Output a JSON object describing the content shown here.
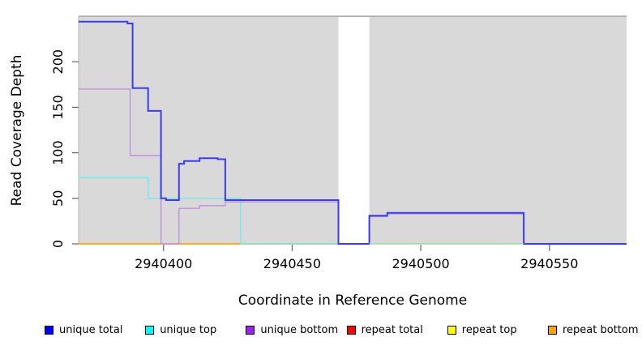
{
  "chart_data": {
    "type": "line",
    "step": true,
    "title": "",
    "xlabel": "Coordinate in Reference Genome",
    "ylabel": "Read Coverage Depth",
    "x_range": [
      2940367,
      2940580
    ],
    "y_range": [
      0,
      250
    ],
    "x_ticks": [
      2940400,
      2940450,
      2940500,
      2940550
    ],
    "y_ticks": [
      0,
      50,
      100,
      150,
      200
    ],
    "grid": false,
    "legend_position": "bottom",
    "panel_bg": "#d9d9d9",
    "panel_border_color": "#999999",
    "tick_color": "#666666",
    "gap_band": {
      "x_start": 2940468,
      "x_end": 2940480,
      "color": "#ffffff"
    },
    "series": [
      {
        "name": "unique total",
        "legend_color": "#0000ff",
        "line_color": "#3a3aff",
        "line_width": 2,
        "points": [
          [
            2940367,
            244
          ],
          [
            2940386,
            244
          ],
          [
            2940386,
            242
          ],
          [
            2940388,
            242
          ],
          [
            2940388,
            171
          ],
          [
            2940394,
            171
          ],
          [
            2940394,
            146
          ],
          [
            2940399,
            146
          ],
          [
            2940399,
            50
          ],
          [
            2940401,
            50
          ],
          [
            2940401,
            48
          ],
          [
            2940406,
            48
          ],
          [
            2940406,
            88
          ],
          [
            2940408,
            88
          ],
          [
            2940408,
            91
          ],
          [
            2940414,
            91
          ],
          [
            2940414,
            94
          ],
          [
            2940421,
            94
          ],
          [
            2940421,
            93
          ],
          [
            2940424,
            93
          ],
          [
            2940424,
            48
          ],
          [
            2940468,
            48
          ],
          [
            2940468,
            0
          ],
          [
            2940480,
            0
          ],
          [
            2940480,
            31
          ],
          [
            2940487,
            31
          ],
          [
            2940487,
            34
          ],
          [
            2940540,
            34
          ],
          [
            2940540,
            0
          ],
          [
            2940580,
            0
          ]
        ]
      },
      {
        "name": "unique top",
        "legend_color": "#00ffff",
        "line_color": "#6fecec",
        "line_width": 1.4,
        "points": [
          [
            2940367,
            73
          ],
          [
            2940394,
            73
          ],
          [
            2940394,
            50
          ],
          [
            2940430,
            50
          ],
          [
            2940430,
            0
          ],
          [
            2940468,
            0
          ]
        ]
      },
      {
        "name": "unique bottom",
        "legend_color": "#a020f0",
        "line_color": "#bd92dd",
        "line_width": 1.4,
        "points": [
          [
            2940367,
            170
          ],
          [
            2940387,
            170
          ],
          [
            2940387,
            97
          ],
          [
            2940399,
            97
          ],
          [
            2940399,
            0
          ],
          [
            2940406,
            0
          ],
          [
            2940406,
            39
          ],
          [
            2940414,
            39
          ],
          [
            2940414,
            42
          ],
          [
            2940424,
            42
          ],
          [
            2940424,
            46
          ],
          [
            2940468,
            46
          ],
          [
            2940468,
            0
          ],
          [
            2940480,
            0
          ],
          [
            2940480,
            30
          ],
          [
            2940487,
            30
          ],
          [
            2940487,
            33
          ],
          [
            2940540,
            33
          ],
          [
            2940540,
            0
          ],
          [
            2940580,
            0
          ]
        ]
      },
      {
        "name": "repeat total",
        "legend_color": "#ff0000",
        "line_color": "#ff0000",
        "line_width": 1.2,
        "points": [
          [
            2940367,
            0
          ],
          [
            2940468,
            0
          ]
        ]
      },
      {
        "name": "repeat top",
        "legend_color": "#ffff00",
        "line_color": "#ffff00",
        "line_width": 1.2,
        "points": [
          [
            2940367,
            0
          ],
          [
            2940468,
            0
          ]
        ]
      },
      {
        "name": "repeat bottom",
        "legend_color": "#ffa500",
        "line_color": "#ffa500",
        "line_width": 1.4,
        "points": [
          [
            2940367,
            0
          ],
          [
            2940468,
            0
          ]
        ]
      }
    ],
    "draw_order": [
      3,
      4,
      5,
      1,
      2,
      0
    ],
    "extra_segments": [
      {
        "name": "post-gap-zero-line",
        "color": "#90d890",
        "line_width": 1.2,
        "points": [
          [
            2940480,
            0
          ],
          [
            2940540,
            0
          ]
        ]
      }
    ]
  }
}
